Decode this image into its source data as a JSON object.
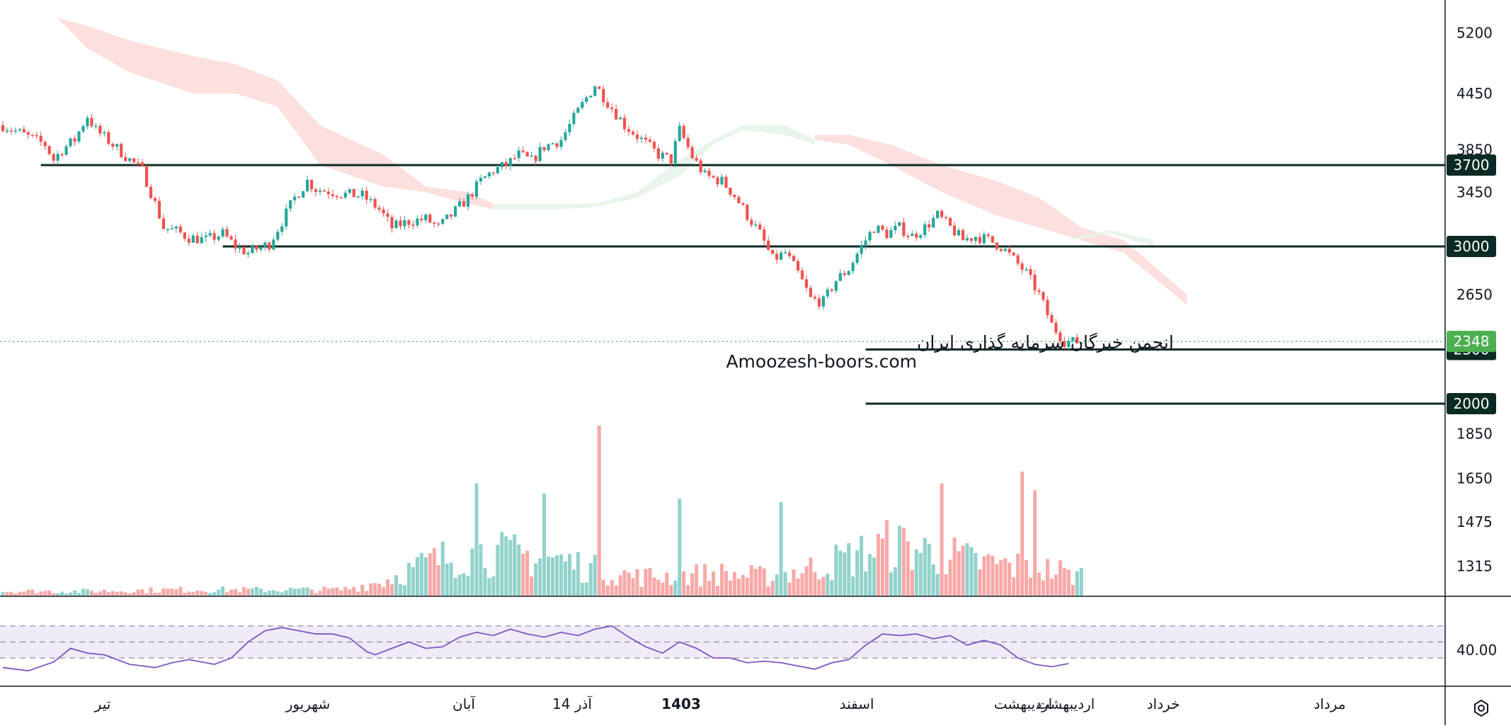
{
  "chart_data": [
    {
      "type": "candlestick",
      "title": "",
      "xlabel": "",
      "ylabel": "",
      "ylim": [
        1150,
        5450
      ],
      "y_scale": "log",
      "y_ticks": [
        "5200",
        "4450",
        "3850",
        "3450",
        "2650",
        "1850",
        "1650",
        "1475",
        "1315"
      ],
      "x_ticks": [
        "تیر",
        "شهریور",
        "آبان",
        "14 آذر",
        "1403",
        "اسفند",
        "اردیبهشت",
        "اردیبهشت",
        "خرداد",
        "مرداد"
      ],
      "x_ticks_bold": [
        false,
        false,
        false,
        false,
        true,
        false,
        false,
        false,
        false,
        false
      ],
      "x_range": [
        0,
        300
      ],
      "bullish_color": "#26a69a",
      "bearish_color": "#ef5350",
      "close_path": [
        [
          0,
          4100
        ],
        [
          10,
          3900
        ],
        [
          12,
          3750
        ],
        [
          14,
          3850
        ],
        [
          17,
          3950
        ],
        [
          20,
          4200
        ],
        [
          22,
          4050
        ],
        [
          26,
          3900
        ],
        [
          30,
          3750
        ],
        [
          33,
          3650
        ],
        [
          35,
          3450
        ],
        [
          38,
          3150
        ],
        [
          41,
          3120
        ],
        [
          44,
          3070
        ],
        [
          48,
          3050
        ],
        [
          52,
          3100
        ],
        [
          55,
          3000
        ],
        [
          58,
          2950
        ],
        [
          60,
          2980
        ],
        [
          63,
          3020
        ],
        [
          66,
          3200
        ],
        [
          69,
          3400
        ],
        [
          72,
          3550
        ],
        [
          74,
          3480
        ],
        [
          77,
          3460
        ],
        [
          81,
          3430
        ],
        [
          85,
          3420
        ],
        [
          89,
          3300
        ],
        [
          92,
          3150
        ],
        [
          96,
          3200
        ],
        [
          100,
          3220
        ],
        [
          103,
          3150
        ],
        [
          106,
          3250
        ],
        [
          110,
          3400
        ],
        [
          113,
          3550
        ],
        [
          116,
          3650
        ],
        [
          119,
          3700
        ],
        [
          122,
          3800
        ],
        [
          125,
          3740
        ],
        [
          128,
          3880
        ],
        [
          132,
          3950
        ],
        [
          136,
          4250
        ],
        [
          140,
          4550
        ],
        [
          143,
          4350
        ],
        [
          147,
          4100
        ],
        [
          151,
          3950
        ],
        [
          155,
          3800
        ],
        [
          158,
          3750
        ],
        [
          160,
          4050
        ],
        [
          163,
          3780
        ],
        [
          166,
          3600
        ],
        [
          170,
          3550
        ],
        [
          173,
          3420
        ],
        [
          176,
          3250
        ],
        [
          179,
          3100
        ],
        [
          182,
          2900
        ],
        [
          185,
          2950
        ],
        [
          188,
          2800
        ],
        [
          191,
          2620
        ],
        [
          194,
          2600
        ],
        [
          197,
          2750
        ],
        [
          200,
          2830
        ],
        [
          203,
          3000
        ],
        [
          206,
          3150
        ],
        [
          209,
          3100
        ],
        [
          212,
          3150
        ],
        [
          215,
          3080
        ],
        [
          218,
          3150
        ],
        [
          221,
          3250
        ],
        [
          224,
          3150
        ],
        [
          227,
          3050
        ],
        [
          230,
          3080
        ],
        [
          233,
          3050
        ],
        [
          236,
          3000
        ],
        [
          239,
          2900
        ],
        [
          242,
          2800
        ],
        [
          245,
          2650
        ],
        [
          248,
          2450
        ],
        [
          251,
          2350
        ],
        [
          253,
          2345
        ],
        [
          255,
          2348
        ]
      ]
    },
    {
      "type": "horizontal_levels",
      "levels": [
        {
          "label": "3700",
          "value": 3700,
          "from_x": 9
        },
        {
          "label": "3000",
          "value": 3000,
          "from_x": 52
        },
        {
          "label": "2300",
          "value": 2300,
          "from_x": 204
        },
        {
          "label": "2000",
          "value": 2000,
          "from_x": 204
        }
      ],
      "current_price": {
        "label": "2348",
        "value": 2348,
        "color": "#4caf50"
      },
      "line_color": "#0c2a24"
    },
    {
      "type": "area",
      "name": "",
      "role": "ichimoku-cloud",
      "segments": [
        {
          "color": "#fbd9d9",
          "x": [
            0,
            13,
            20,
            30,
            45,
            55,
            65,
            75,
            90,
            100,
            110,
            116
          ],
          "top": [
            5400,
            5400,
            5000,
            4700,
            4450,
            4450,
            4300,
            3700,
            3500,
            3450,
            3350,
            3300
          ],
          "bottom": [
            5400,
            5400,
            5300,
            5100,
            4900,
            4800,
            4600,
            4100,
            3800,
            3500,
            3450,
            3350
          ]
        },
        {
          "color": "#e5f3e8",
          "x": [
            116,
            130,
            140,
            150,
            160,
            168,
            175,
            185,
            192
          ],
          "top": [
            3300,
            3300,
            3320,
            3400,
            3600,
            3900,
            4050,
            4000,
            3900
          ],
          "bottom": [
            3350,
            3350,
            3350,
            3450,
            3750,
            3950,
            4100,
            4100,
            3950
          ]
        },
        {
          "color": "#fbd9d9",
          "x": [
            192,
            200,
            210,
            222,
            235,
            245,
            255,
            265,
            280
          ],
          "top": [
            3950,
            3900,
            3700,
            3450,
            3250,
            3150,
            3050,
            2950,
            2580
          ],
          "bottom": [
            4000,
            4000,
            3900,
            3700,
            3550,
            3400,
            3150,
            3050,
            2650
          ]
        },
        {
          "color": "#e5f3e8",
          "x": [
            252,
            262,
            272
          ],
          "top": [
            3050,
            3100,
            3000
          ],
          "bottom": [
            3060,
            3130,
            3050
          ]
        }
      ]
    },
    {
      "type": "bar",
      "name": "",
      "role": "volume",
      "y_ticks": [],
      "noise_scale": "relative 0-1",
      "envelope": [
        [
          0,
          0.03
        ],
        [
          20,
          0.03
        ],
        [
          40,
          0.04
        ],
        [
          60,
          0.04
        ],
        [
          80,
          0.04
        ],
        [
          90,
          0.1
        ],
        [
          100,
          0.22
        ],
        [
          110,
          0.3
        ],
        [
          120,
          0.28
        ],
        [
          130,
          0.26
        ],
        [
          140,
          0.18
        ],
        [
          150,
          0.13
        ],
        [
          160,
          0.14
        ],
        [
          170,
          0.15
        ],
        [
          180,
          0.13
        ],
        [
          190,
          0.18
        ],
        [
          200,
          0.26
        ],
        [
          210,
          0.35
        ],
        [
          220,
          0.3
        ],
        [
          230,
          0.23
        ],
        [
          240,
          0.2
        ],
        [
          250,
          0.17
        ],
        [
          252,
          0.14
        ]
      ],
      "spikes": [
        {
          "x": 112,
          "value": 0.66
        },
        {
          "x": 128,
          "value": 0.6
        },
        {
          "x": 141,
          "value": 1.0
        },
        {
          "x": 160,
          "value": 0.57
        },
        {
          "x": 184,
          "value": 0.55
        },
        {
          "x": 222,
          "value": 0.66
        },
        {
          "x": 241,
          "value": 0.73
        },
        {
          "x": 244,
          "value": 0.62
        }
      ]
    },
    {
      "type": "line",
      "name": "",
      "role": "rsi",
      "y_ticks": [
        "40.00"
      ],
      "band": [
        30,
        70
      ],
      "mid": 50,
      "ylim": [
        0,
        100
      ],
      "band_color": "#7e57c2",
      "line_color": "#7e57c2",
      "x": [
        0,
        6,
        12,
        16,
        20,
        24,
        30,
        36,
        40,
        44,
        50,
        54,
        58,
        62,
        66,
        70,
        74,
        78,
        82,
        86,
        88,
        92,
        96,
        100,
        104,
        108,
        112,
        116,
        120,
        124,
        128,
        132,
        136,
        140,
        144,
        148,
        152,
        156,
        160,
        164,
        168,
        172,
        176,
        180,
        184,
        188,
        192,
        196,
        200,
        204,
        208,
        212,
        216,
        220,
        224,
        228,
        232,
        236,
        240,
        244,
        248,
        252
      ],
      "values": [
        18,
        14,
        25,
        42,
        36,
        34,
        22,
        18,
        24,
        28,
        22,
        30,
        50,
        64,
        68,
        64,
        60,
        60,
        55,
        38,
        34,
        42,
        50,
        42,
        44,
        56,
        62,
        58,
        66,
        60,
        56,
        62,
        58,
        66,
        70,
        56,
        44,
        36,
        50,
        42,
        30,
        30,
        24,
        26,
        24,
        20,
        16,
        24,
        28,
        46,
        60,
        58,
        60,
        54,
        58,
        46,
        52,
        46,
        30,
        22,
        19,
        23
      ]
    },
    {
      "type": "annotation",
      "watermark": {
        "line1": "انجمن خبرگان سرمایه گذاری ایران",
        "line2": "Amoozesh-boors.com"
      }
    }
  ],
  "ui": {
    "settings_icon": "gear-icon"
  }
}
